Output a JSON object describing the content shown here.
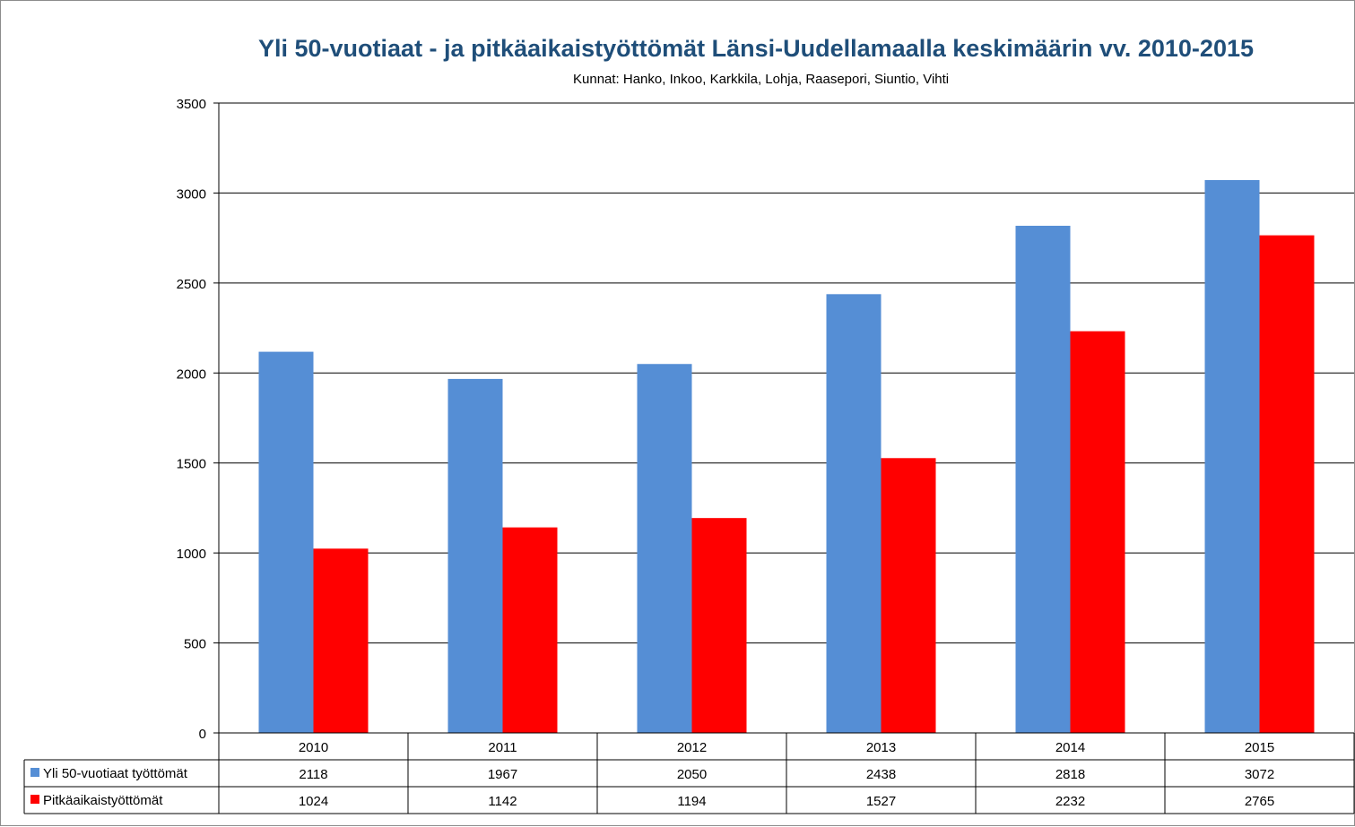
{
  "chart_data": {
    "type": "bar",
    "title": "Yli 50-vuotiaat - ja pitkäaikaistyöttömät Länsi-Uudellamaalla keskimäärin vv. 2010-2015",
    "subtitle": "Kunnat: Hanko, Inkoo, Karkkila, Lohja, Raasepori, Siuntio, Vihti",
    "categories": [
      "2010",
      "2011",
      "2012",
      "2013",
      "2014",
      "2015"
    ],
    "series": [
      {
        "name": "Yli 50-vuotiaat työttömät",
        "color": "#558ed5",
        "values": [
          2118,
          1967,
          2050,
          2438,
          2818,
          3072
        ]
      },
      {
        "name": "Pitkäaikaistyöttömät",
        "color": "#ff0000",
        "values": [
          1024,
          1142,
          1194,
          1527,
          2232,
          2765
        ]
      }
    ],
    "ylim": [
      0,
      3500
    ],
    "yticks": [
      0,
      500,
      1000,
      1500,
      2000,
      2500,
      3000,
      3500
    ],
    "grid": true,
    "legend": "data-table"
  }
}
